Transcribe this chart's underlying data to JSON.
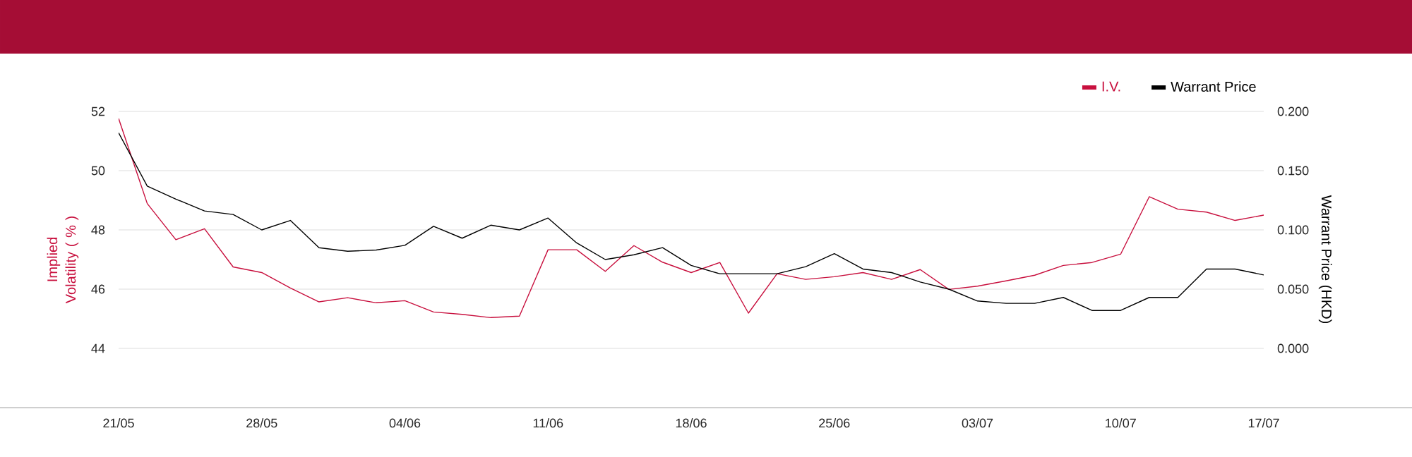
{
  "chart_data": {
    "type": "line",
    "ylabel": "Implied Volatility ( % )",
    "y2label": "Warrant Price (HKD)",
    "categories": [
      "21/05",
      null,
      null,
      null,
      null,
      "28/05",
      null,
      null,
      null,
      null,
      "04/06",
      null,
      null,
      null,
      null,
      "11/06",
      null,
      null,
      null,
      null,
      "18/06",
      null,
      null,
      null,
      null,
      "25/06",
      null,
      null,
      null,
      null,
      "03/07",
      null,
      null,
      null,
      null,
      "10/07",
      null,
      null,
      null,
      null,
      "17/07"
    ],
    "series": [
      {
        "name": "I.V.",
        "color": "#c8103e",
        "values": [
          51.76,
          48.89,
          47.67,
          48.04,
          46.75,
          46.56,
          46.04,
          45.57,
          45.71,
          45.54,
          45.61,
          45.23,
          45.15,
          45.04,
          45.09,
          47.33,
          47.33,
          46.6,
          47.47,
          46.91,
          46.56,
          46.9,
          45.19,
          46.52,
          46.33,
          46.42,
          46.56,
          46.33,
          46.66,
          45.99,
          46.1,
          46.28,
          46.47,
          46.8,
          46.9,
          47.18,
          49.12,
          48.7,
          48.6,
          48.32,
          48.5
        ]
      },
      {
        "name": "Warrant Price",
        "color": "#000000",
        "axis": "y2",
        "values": [
          0.182,
          0.137,
          0.126,
          0.116,
          0.113,
          0.1,
          0.108,
          0.085,
          0.082,
          0.083,
          0.087,
          0.103,
          0.093,
          0.104,
          0.1,
          0.11,
          0.089,
          0.075,
          0.079,
          0.085,
          0.07,
          0.063,
          0.063,
          0.063,
          0.069,
          0.08,
          0.067,
          0.064,
          0.056,
          0.05,
          0.04,
          0.038,
          0.038,
          0.043,
          0.032,
          0.032,
          0.043,
          0.043,
          0.067,
          0.067,
          0.062
        ]
      }
    ],
    "ylim": [
      42,
      52
    ],
    "yticks": [
      44,
      46,
      48,
      50,
      52
    ],
    "y2lim": [
      -0.05,
      0.2
    ],
    "y2ticks": [
      {
        "value": 0,
        "label": "0.000"
      },
      {
        "value": 0.05,
        "label": "0.050"
      },
      {
        "value": 0.1,
        "label": "0.100"
      },
      {
        "value": 0.15,
        "label": "0.150"
      },
      {
        "value": 0.2,
        "label": "0.200"
      }
    ],
    "grid": "y",
    "legend": "top right",
    "marker": "none",
    "line_style": "solid"
  }
}
